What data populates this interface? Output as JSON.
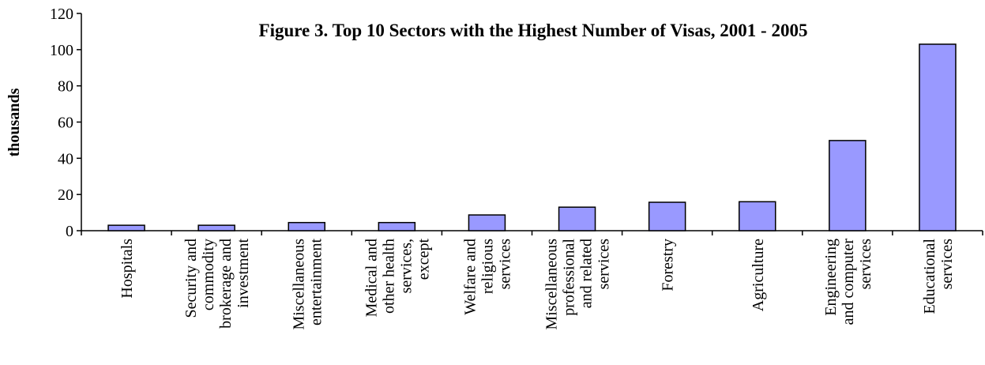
{
  "chart_data": {
    "type": "bar",
    "title": "Figure 3. Top 10 Sectors with the Highest Number of Visas, 2001 - 2005",
    "y_label": "thousands",
    "categories": [
      [
        "Hospitals"
      ],
      [
        "Security and",
        "commodity",
        "brokerage and",
        "investment"
      ],
      [
        "Miscellaneous",
        "entertainment"
      ],
      [
        "Medical and",
        "other health",
        "services,",
        "except"
      ],
      [
        "Welfare and",
        "religious",
        "services"
      ],
      [
        "Miscellaneous",
        "professional",
        "and related",
        "services"
      ],
      [
        "Forestry"
      ],
      [
        "Agriculture"
      ],
      [
        "Engineering",
        "and computer",
        "services"
      ],
      [
        "Educational",
        "services"
      ]
    ],
    "values": [
      3,
      3,
      4.5,
      4.5,
      8.7,
      13,
      15.7,
      16,
      49.8,
      103
    ],
    "color": "#9999ff",
    "ylim": [
      0,
      120
    ],
    "yticks": [
      0,
      20,
      40,
      60,
      80,
      100,
      120
    ],
    "grid": false
  }
}
